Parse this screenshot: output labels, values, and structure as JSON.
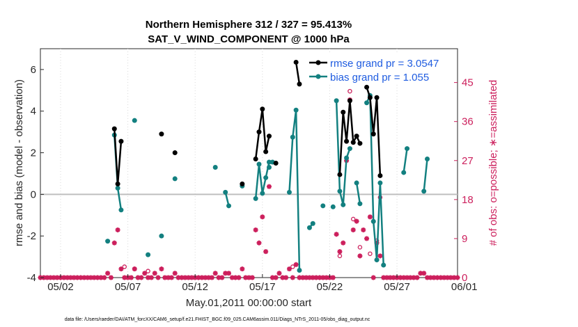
{
  "chart_data": {
    "type": "line",
    "title": "Northern Hemisphere 312 / 327 = 95.413%",
    "subtitle": "SAT_V_WIND_COMPONENT @ 1000 hPa",
    "xlabel": "May.01,2011 00:00:00 start",
    "ylabel": "rmse and bias (model - observation)",
    "ylabel_right": "# of obs: o=possible; ∗=assimilated",
    "footnote": "data file: /Users/raeder/DAI/ATM_forcXX/CAM6_setup/f.e21.FHIST_BGC.f09_025.CAM6assim.011/Diags_NTrS_2011-05/obs_diag_output.nc",
    "xlim": [
      0.5,
      31.5
    ],
    "ylim": [
      -4,
      7
    ],
    "ylim_right": [
      0,
      52.8
    ],
    "x_ticks": [
      2,
      7,
      12,
      17,
      22,
      27,
      32
    ],
    "x_tick_labels": [
      "05/02",
      "05/07",
      "05/12",
      "05/17",
      "05/22",
      "05/27",
      "06/01"
    ],
    "y_ticks": [
      -4,
      -2,
      0,
      2,
      4,
      6
    ],
    "y_tick_labels": [
      "-4",
      "-2",
      "0",
      "2",
      "4",
      "6"
    ],
    "y_ticks_right": [
      0,
      9,
      18,
      27,
      36,
      45
    ],
    "y_tick_labels_right": [
      "0",
      "9",
      "18",
      "27",
      "36",
      "45"
    ],
    "zero_line": 0,
    "legend_position": "top-right",
    "colors": {
      "rmse": "#000000",
      "bias": "#138080",
      "obs": "#cc1f5c",
      "legend_text": "#1f5ce0",
      "zero_line": "#bfbfbf"
    },
    "series": [
      {
        "name": "rmse grand pr = 3.0547",
        "segments": [
          [
            [
              6.0,
              3.15
            ],
            [
              6.25,
              0.5
            ],
            [
              6.5,
              2.55
            ]
          ],
          [
            [
              15.5,
              0.5
            ]
          ],
          [
            [
              16.5,
              1.7
            ],
            [
              16.75,
              3.0
            ],
            [
              17.0,
              4.1
            ],
            [
              17.25,
              2.05
            ],
            [
              17.5,
              2.8
            ]
          ],
          [
            [
              18.0,
              1.5
            ]
          ],
          [
            [
              19.5,
              6.35
            ],
            [
              19.75,
              5.3
            ]
          ],
          [
            [
              22.75,
              0.95
            ],
            [
              23.0,
              3.95
            ],
            [
              23.25,
              2.55
            ],
            [
              23.5,
              4.5
            ],
            [
              23.75,
              2.5
            ],
            [
              24.0,
              2.8
            ],
            [
              24.25,
              2.45
            ]
          ],
          [
            [
              24.75,
              5.15
            ],
            [
              25.0,
              4.65
            ],
            [
              25.25,
              2.9
            ],
            [
              25.5,
              4.65
            ],
            [
              25.75,
              0.9
            ]
          ]
        ],
        "isolated_points": [
          [
            9.5,
            2.9
          ],
          [
            10.5,
            2.0
          ]
        ]
      },
      {
        "name": "bias grand pr = 1.055",
        "segments": [
          [
            [
              6.0,
              2.85
            ],
            [
              6.25,
              0.3
            ],
            [
              6.5,
              -0.75
            ]
          ],
          [
            [
              14.25,
              0.1
            ],
            [
              14.5,
              -0.55
            ]
          ],
          [
            [
              16.5,
              -0.2
            ],
            [
              16.75,
              1.45
            ],
            [
              17.0,
              0.05
            ],
            [
              17.25,
              0.8
            ],
            [
              17.5,
              1.55
            ],
            [
              17.75,
              1.55
            ]
          ],
          [
            [
              19.0,
              0.1
            ],
            [
              19.25,
              2.75
            ],
            [
              19.5,
              4.05
            ],
            [
              19.75,
              -3.65
            ]
          ],
          [
            [
              20.5,
              -1.6
            ],
            [
              20.75,
              -1.4
            ]
          ],
          [
            [
              22.5,
              4.5
            ],
            [
              22.75,
              0.15
            ],
            [
              23.0,
              -0.5
            ],
            [
              23.25,
              1.75
            ],
            [
              23.5,
              2.2
            ]
          ],
          [
            [
              24.0,
              0.55
            ],
            [
              24.25,
              -0.45
            ]
          ],
          [
            [
              24.75,
              4.4
            ],
            [
              25.0,
              4.75
            ],
            [
              25.25,
              -1.3
            ],
            [
              25.5,
              -3.15
            ],
            [
              25.75,
              0.55
            ],
            [
              26.0,
              -3.4
            ]
          ],
          [
            [
              27.5,
              1.05
            ],
            [
              27.75,
              2.2
            ]
          ],
          [
            [
              29.0,
              0.15
            ],
            [
              29.25,
              1.7
            ]
          ]
        ],
        "isolated_points": [
          [
            5.5,
            -2.25
          ],
          [
            7.5,
            3.55
          ],
          [
            8.5,
            -2.9
          ],
          [
            9.5,
            -2.0
          ],
          [
            10.5,
            0.75
          ],
          [
            13.5,
            1.3
          ],
          [
            15.5,
            0.4
          ],
          [
            17.5,
            1.3
          ],
          [
            21.5,
            -0.55
          ],
          [
            22.25,
            -0.6
          ]
        ]
      },
      {
        "name": "assimilated",
        "axis": "right",
        "points": [
          [
            0.5,
            0
          ],
          [
            0.75,
            0
          ],
          [
            1.0,
            0
          ],
          [
            1.25,
            0
          ],
          [
            1.5,
            0
          ],
          [
            1.75,
            0
          ],
          [
            2.0,
            0
          ],
          [
            2.25,
            0
          ],
          [
            2.5,
            0
          ],
          [
            2.75,
            0
          ],
          [
            3.0,
            0
          ],
          [
            3.25,
            0
          ],
          [
            3.5,
            0
          ],
          [
            3.75,
            0
          ],
          [
            4.0,
            0
          ],
          [
            4.25,
            0
          ],
          [
            4.5,
            0
          ],
          [
            4.75,
            0
          ],
          [
            5.0,
            0
          ],
          [
            5.25,
            0
          ],
          [
            5.5,
            1
          ],
          [
            5.75,
            0
          ],
          [
            6.0,
            8
          ],
          [
            6.25,
            11
          ],
          [
            6.5,
            2
          ],
          [
            6.75,
            0
          ],
          [
            7.0,
            0
          ],
          [
            7.25,
            0
          ],
          [
            7.5,
            2
          ],
          [
            7.75,
            0
          ],
          [
            8.0,
            0
          ],
          [
            8.25,
            1
          ],
          [
            8.5,
            0
          ],
          [
            8.75,
            0
          ],
          [
            9.0,
            1
          ],
          [
            9.25,
            0
          ],
          [
            9.5,
            2
          ],
          [
            9.75,
            0
          ],
          [
            10.0,
            0
          ],
          [
            10.25,
            0
          ],
          [
            10.5,
            1
          ],
          [
            10.75,
            0
          ],
          [
            11.0,
            0
          ],
          [
            11.25,
            0
          ],
          [
            11.5,
            0
          ],
          [
            11.75,
            0
          ],
          [
            12.0,
            0
          ],
          [
            12.25,
            0
          ],
          [
            12.5,
            0
          ],
          [
            12.75,
            0
          ],
          [
            13.0,
            0
          ],
          [
            13.25,
            0
          ],
          [
            13.5,
            1
          ],
          [
            13.75,
            0
          ],
          [
            14.0,
            0
          ],
          [
            14.25,
            1
          ],
          [
            14.5,
            1
          ],
          [
            14.75,
            0
          ],
          [
            15.0,
            0
          ],
          [
            15.25,
            0
          ],
          [
            15.5,
            2
          ],
          [
            15.75,
            0
          ],
          [
            16.0,
            0
          ],
          [
            16.25,
            0
          ],
          [
            16.5,
            11
          ],
          [
            16.75,
            8
          ],
          [
            17.0,
            14
          ],
          [
            17.25,
            6
          ],
          [
            17.5,
            21
          ],
          [
            17.75,
            0
          ],
          [
            18.0,
            0
          ],
          [
            18.25,
            1
          ],
          [
            18.5,
            0
          ],
          [
            18.75,
            0
          ],
          [
            19.0,
            2
          ],
          [
            19.25,
            0
          ],
          [
            19.5,
            3
          ],
          [
            19.75,
            0
          ],
          [
            20.0,
            0
          ],
          [
            20.25,
            0
          ],
          [
            20.5,
            0
          ],
          [
            20.75,
            0
          ],
          [
            21.0,
            0
          ],
          [
            21.25,
            0
          ],
          [
            21.5,
            0
          ],
          [
            21.75,
            0
          ],
          [
            22.0,
            0
          ],
          [
            22.25,
            0
          ],
          [
            22.5,
            10
          ],
          [
            22.75,
            6
          ],
          [
            23.0,
            8
          ],
          [
            23.25,
            27
          ],
          [
            23.5,
            41
          ],
          [
            23.75,
            11
          ],
          [
            24.0,
            13
          ],
          [
            24.25,
            5
          ],
          [
            24.5,
            11
          ],
          [
            24.75,
            9
          ],
          [
            25.0,
            14
          ],
          [
            25.25,
            0
          ],
          [
            25.5,
            8
          ],
          [
            25.75,
            5
          ],
          [
            26.0,
            0
          ],
          [
            26.25,
            0
          ],
          [
            26.5,
            0
          ],
          [
            26.75,
            0
          ],
          [
            27.0,
            0
          ],
          [
            27.25,
            0
          ],
          [
            27.5,
            0
          ],
          [
            27.75,
            0
          ],
          [
            28.0,
            0
          ],
          [
            28.25,
            0
          ],
          [
            28.5,
            0
          ],
          [
            28.75,
            1
          ],
          [
            29.0,
            1
          ],
          [
            29.25,
            0
          ],
          [
            29.5,
            0
          ],
          [
            29.75,
            0
          ],
          [
            30.0,
            0
          ],
          [
            30.25,
            0
          ],
          [
            30.5,
            0
          ],
          [
            30.75,
            0
          ],
          [
            31.0,
            0
          ],
          [
            31.25,
            0
          ],
          [
            31.5,
            0
          ]
        ]
      },
      {
        "name": "possible",
        "axis": "right",
        "points": [
          [
            6.75,
            2.5
          ],
          [
            7.5,
            2.0
          ],
          [
            8.5,
            1.5
          ],
          [
            19.25,
            2.5
          ],
          [
            22.75,
            5.0
          ],
          [
            23.5,
            43
          ],
          [
            23.75,
            13.5
          ],
          [
            24.25,
            7.0
          ],
          [
            25.0,
            5.5
          ],
          [
            25.5,
            8.5
          ],
          [
            25.75,
            18.5
          ]
        ]
      }
    ]
  }
}
